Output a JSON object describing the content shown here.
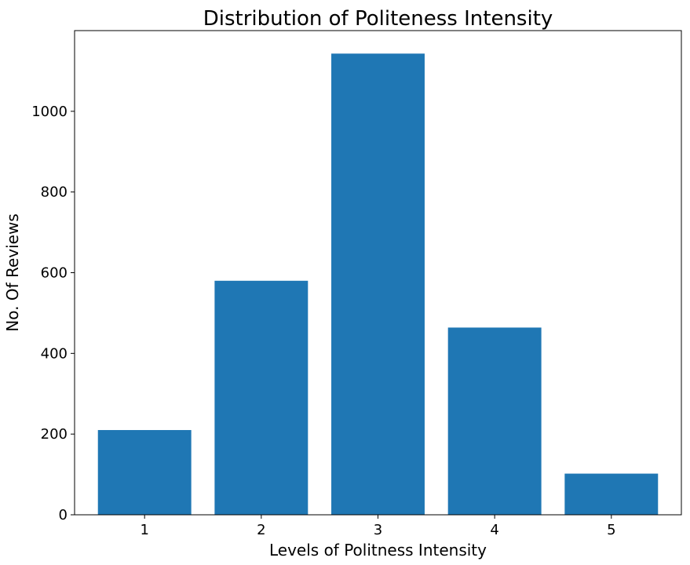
{
  "chart_data": {
    "type": "bar",
    "title": "Distribution of Politeness Intensity",
    "xlabel": "Levels of Politness Intensity",
    "ylabel": "No. Of Reviews",
    "categories": [
      "1",
      "2",
      "3",
      "4",
      "5"
    ],
    "values": [
      210,
      580,
      1143,
      464,
      102
    ],
    "ylim": [
      0,
      1200
    ],
    "yticks": [
      0,
      200,
      400,
      600,
      800,
      1000
    ],
    "grid": false,
    "bar_color": "#1f77b4"
  }
}
